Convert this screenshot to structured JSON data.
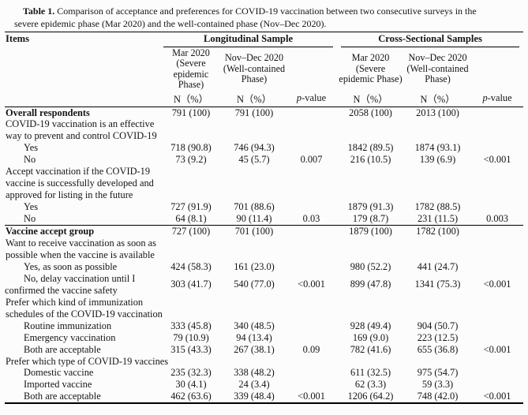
{
  "caption": {
    "label": "Table 1.",
    "text": "Comparison of acceptance and preferences for COVID-19 vaccination between two consecutive surveys in the\nsevere epidemic phase (Mar 2020) and the well-contained phase (Nov–Dec 2020)."
  },
  "table": {
    "items_header": "Items",
    "groups": [
      {
        "label": "Longitudinal Sample"
      },
      {
        "label": "Cross-Sectional Samples"
      }
    ],
    "col_headers": [
      "Mar 2020\n(Severe\nepidemic\nPhase)",
      "Nov–Dec 2020\n(Well-contained\nPhase)",
      "",
      "Mar 2020\n(Severe\nepidemic Phase)",
      "Nov–Dec 2020\n(Well-contained\nPhase)",
      ""
    ],
    "n_header": "N（%）",
    "p_label": {
      "italic": "p",
      "rest": "-value"
    },
    "rows": [
      {
        "label": "Overall respondents",
        "bold": true,
        "cells": [
          "791 (100)",
          "791 (100)",
          "",
          "2058 (100)",
          "2013 (100)",
          ""
        ]
      },
      {
        "label": "COVID-19 vaccination is an effective\nway to prevent and control COVID-19",
        "cells": [
          "",
          "",
          "",
          "",
          "",
          ""
        ]
      },
      {
        "label": "Yes",
        "indent": 1,
        "cells": [
          "718 (90.8)",
          "746 (94.3)",
          "",
          "1842 (89.5)",
          "1874 (93.1)",
          ""
        ]
      },
      {
        "label": "No",
        "indent": 1,
        "cells": [
          "73 (9.2)",
          "45 (5.7)",
          "0.007",
          "216 (10.5)",
          "139 (6.9)",
          "<0.001"
        ]
      },
      {
        "label": "Accept vaccination if the COVID-19\nvaccine is successfully developed and\napproved for listing in the future",
        "cells": [
          "",
          "",
          "",
          "",
          "",
          ""
        ]
      },
      {
        "label": "Yes",
        "indent": 1,
        "cells": [
          "727 (91.9)",
          "701 (88.6)",
          "",
          "1879 (91.3)",
          "1782 (88.5)",
          ""
        ]
      },
      {
        "label": "No",
        "indent": 1,
        "rule_below": true,
        "cells": [
          "64 (8.1)",
          "90 (11.4)",
          "0.03",
          "179 (8.7)",
          "231 (11.5)",
          "0.003"
        ]
      },
      {
        "label": "Vaccine accept group",
        "bold": true,
        "cells": [
          "727 (100)",
          "701 (100)",
          "",
          "1879 (100)",
          "1782 (100)",
          ""
        ]
      },
      {
        "label": "Want to receive vaccination as soon as\npossible when the vaccine is available",
        "cells": [
          "",
          "",
          "",
          "",
          "",
          ""
        ]
      },
      {
        "label": "Yes, as soon as possible",
        "indent": 1,
        "cells": [
          "424 (58.3)",
          "161 (23.0)",
          "",
          "980 (52.2)",
          "441 (24.7)",
          ""
        ]
      },
      {
        "label": "No, delay vaccination until I\nconfirmed the vaccine safety",
        "hang": true,
        "cells": [
          "303 (41.7)",
          "540 (77.0)",
          "<0.001",
          "899 (47.8)",
          "1341 (75.3)",
          "<0.001"
        ]
      },
      {
        "label": "Prefer which kind of immunization\nschedules of the COVID-19 vaccination",
        "cells": [
          "",
          "",
          "",
          "",
          "",
          ""
        ]
      },
      {
        "label": "Routine immunization",
        "indent": 1,
        "cells": [
          "333 (45.8)",
          "340 (48.5)",
          "",
          "928 (49.4)",
          "904 (50.7)",
          ""
        ]
      },
      {
        "label": "Emergency vaccination",
        "indent": 1,
        "cells": [
          "79 (10.9)",
          "94 (13.4)",
          "",
          "169 (9.0)",
          "223 (12.5)",
          ""
        ]
      },
      {
        "label": "Both are acceptable",
        "indent": 1,
        "cells": [
          "315 (43.3)",
          "267 (38.1)",
          "0.09",
          "782 (41.6)",
          "655 (36.8)",
          "<0.001"
        ]
      },
      {
        "label": "Prefer which type of COVID-19 vaccines",
        "cells": [
          "",
          "",
          "",
          "",
          "",
          ""
        ]
      },
      {
        "label": "Domestic vaccine",
        "indent": 1,
        "cells": [
          "235 (32.3)",
          "338 (48.2)",
          "",
          "611 (32.5)",
          "975 (54.7)",
          ""
        ]
      },
      {
        "label": "Imported vaccine",
        "indent": 1,
        "cells": [
          "30 (4.1)",
          "24 (3.4)",
          "",
          "62 (3.3)",
          "59 (3.3)",
          ""
        ]
      },
      {
        "label": "Both are acceptable",
        "indent": 1,
        "cells": [
          "462 (63.6)",
          "339 (48.4)",
          "<0.001",
          "1206 (64.2)",
          "748 (42.0)",
          "<0.001"
        ]
      }
    ]
  }
}
